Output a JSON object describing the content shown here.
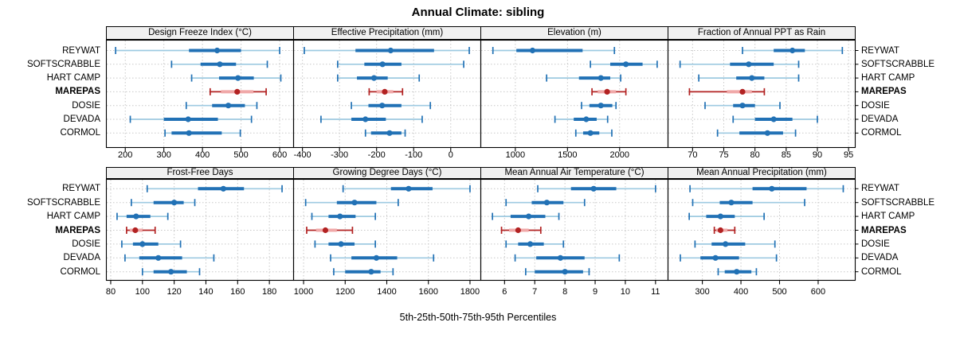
{
  "chart_data": {
    "type": "scatter",
    "variant": "trellis-percentile-interval-dotplot",
    "title": "Annual Climate: sibling",
    "caption": "5th-25th-50th-75th-95th Percentiles",
    "percentile_labels": [
      "5th",
      "25th",
      "50th",
      "75th",
      "95th"
    ],
    "sites": [
      "REYWAT",
      "SOFTSCRABBLE",
      "HART CAMP",
      "MAREPAS",
      "DOSIE",
      "DEVADA",
      "CORMOL"
    ],
    "highlighted_site": "MAREPAS",
    "layout": {
      "rows": 2,
      "cols": 4,
      "grid": "dotted",
      "site_labels": "both-sides",
      "legend": "none"
    },
    "colors": {
      "normal_range": "#9ECAE1",
      "normal_box": "#2171B5",
      "normal_dot": "#2171B5",
      "normal_cap": "#2171B5",
      "highlight_range": "#B22222",
      "highlight_box": "#F0A8A8",
      "highlight_dot": "#B22222",
      "highlight_cap": "#B22222",
      "strip_bg": "#f0f0f0",
      "panel_border": "#000000",
      "grid": "#c8c8c8"
    },
    "panels": [
      {
        "label": "Design Freeze Index (°C)",
        "ticks": [
          200,
          300,
          400,
          500,
          600
        ],
        "xlim": [
          150,
          635
        ],
        "values": [
          [
            175,
            365,
            438,
            500,
            600
          ],
          [
            320,
            395,
            445,
            487,
            568
          ],
          [
            372,
            443,
            492,
            533,
            603
          ],
          [
            420,
            448,
            490,
            532,
            565
          ],
          [
            358,
            425,
            467,
            510,
            541
          ],
          [
            213,
            300,
            363,
            440,
            527
          ],
          [
            303,
            320,
            365,
            450,
            498
          ]
        ]
      },
      {
        "label": "Effective Precipitation (mm)",
        "ticks": [
          -400,
          -300,
          -200,
          -100,
          0
        ],
        "xlim": [
          -425,
          80
        ],
        "values": [
          [
            -395,
            -257,
            -162,
            -45,
            50
          ],
          [
            -305,
            -233,
            -184,
            -133,
            35
          ],
          [
            -305,
            -253,
            -207,
            -170,
            -85
          ],
          [
            -220,
            -200,
            -178,
            -155,
            -130
          ],
          [
            -268,
            -222,
            -185,
            -133,
            -55
          ],
          [
            -350,
            -268,
            -230,
            -175,
            -77
          ],
          [
            -230,
            -215,
            -165,
            -133,
            -123
          ]
        ]
      },
      {
        "label": "Elevation (m)",
        "ticks": [
          1000,
          1500,
          2000
        ],
        "xlim": [
          665,
          2460
        ],
        "values": [
          [
            785,
            1010,
            1165,
            1645,
            1950
          ],
          [
            1720,
            1910,
            2060,
            2220,
            2360
          ],
          [
            1300,
            1610,
            1820,
            1910,
            2010
          ],
          [
            1735,
            1790,
            1880,
            1965,
            2060
          ],
          [
            1635,
            1710,
            1820,
            1930,
            1965
          ],
          [
            1380,
            1560,
            1680,
            1780,
            1885
          ],
          [
            1580,
            1650,
            1720,
            1805,
            1925
          ]
        ]
      },
      {
        "label": "Fraction of Annual PPT as Rain",
        "ticks": [
          70,
          75,
          80,
          85,
          90,
          95
        ],
        "xlim": [
          66,
          96
        ],
        "values": [
          [
            78,
            83,
            86,
            88,
            94
          ],
          [
            68,
            76,
            79,
            83,
            87
          ],
          [
            71,
            77,
            79.5,
            81.5,
            87
          ],
          [
            69.5,
            75.5,
            78,
            79.5,
            81.5
          ],
          [
            72,
            76.5,
            78,
            80,
            84
          ],
          [
            76.5,
            80,
            83,
            86,
            90
          ],
          [
            74,
            77.5,
            82,
            84.5,
            86.5
          ]
        ]
      },
      {
        "label": "Frost-Free Days",
        "ticks": [
          80,
          100,
          120,
          140,
          160,
          180
        ],
        "xlim": [
          77,
          195
        ],
        "values": [
          [
            103,
            135,
            151,
            164,
            188
          ],
          [
            93,
            107,
            120,
            126,
            133
          ],
          [
            84,
            90,
            96,
            105,
            116
          ],
          [
            90,
            92,
            95.5,
            100,
            108
          ],
          [
            87,
            94,
            100,
            110,
            124
          ],
          [
            89,
            98,
            110,
            125,
            145
          ],
          [
            100,
            107,
            118,
            128,
            136
          ]
        ]
      },
      {
        "label": "Growing Degree Days (°C)",
        "ticks": [
          1000,
          1200,
          1400,
          1600,
          1800
        ],
        "xlim": [
          950,
          1850
        ],
        "values": [
          [
            1190,
            1420,
            1505,
            1620,
            1800
          ],
          [
            1010,
            1160,
            1245,
            1350,
            1455
          ],
          [
            1040,
            1120,
            1175,
            1250,
            1345
          ],
          [
            1015,
            1060,
            1105,
            1160,
            1235
          ],
          [
            1055,
            1120,
            1180,
            1245,
            1345
          ],
          [
            1130,
            1230,
            1350,
            1450,
            1625
          ],
          [
            1145,
            1200,
            1325,
            1370,
            1430
          ]
        ]
      },
      {
        "label": "Mean Annual Air Temperature (°C)",
        "ticks": [
          6,
          7,
          8,
          9,
          10,
          11
        ],
        "xlim": [
          5.2,
          11.4
        ],
        "values": [
          [
            7.1,
            8.2,
            8.95,
            9.7,
            11.0
          ],
          [
            6.05,
            6.9,
            7.4,
            7.95,
            8.65
          ],
          [
            5.6,
            6.2,
            6.8,
            7.35,
            7.8
          ],
          [
            5.9,
            6.15,
            6.45,
            6.8,
            7.2
          ],
          [
            6.05,
            6.45,
            6.85,
            7.3,
            7.95
          ],
          [
            6.35,
            7.05,
            7.85,
            8.65,
            9.8
          ],
          [
            6.7,
            7.0,
            8.0,
            8.6,
            8.8
          ]
        ]
      },
      {
        "label": "Mean Annual Precipitation (mm)",
        "ticks": [
          300,
          400,
          500,
          600
        ],
        "xlim": [
          210,
          695
        ],
        "values": [
          [
            268,
            430,
            480,
            570,
            665
          ],
          [
            275,
            345,
            375,
            430,
            565
          ],
          [
            266,
            310,
            347,
            384,
            460
          ],
          [
            331,
            336,
            347,
            365,
            384
          ],
          [
            281,
            324,
            360,
            411,
            488
          ],
          [
            243,
            295,
            334,
            395,
            492
          ],
          [
            341,
            358,
            389,
            427,
            440
          ]
        ]
      }
    ]
  }
}
